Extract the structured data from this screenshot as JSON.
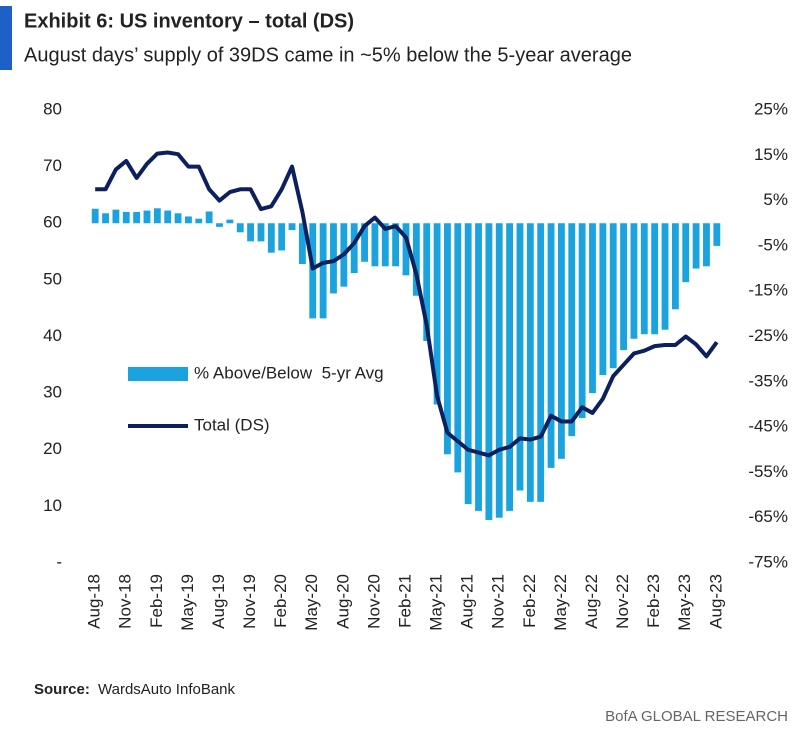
{
  "chart_data": {
    "type": "bar-line",
    "title": "Exhibit 6: US inventory – total (DS)",
    "subtitle": "August days’ supply of 39DS came in ~5% below the 5-year average",
    "source_label": "Source:",
    "source": "WardsAuto InfoBank",
    "credit": "BofA GLOBAL RESEARCH",
    "categories": [
      "Aug-18",
      null,
      null,
      "Nov-18",
      null,
      null,
      "Feb-19",
      null,
      null,
      "May-19",
      null,
      null,
      "Aug-19",
      null,
      null,
      "Nov-19",
      null,
      null,
      "Feb-20",
      null,
      null,
      "May-20",
      null,
      null,
      "Aug-20",
      null,
      null,
      "Nov-20",
      null,
      null,
      "Feb-21",
      null,
      null,
      "May-21",
      null,
      null,
      "Aug-21",
      null,
      null,
      "Nov-21",
      null,
      null,
      "Feb-22",
      null,
      null,
      "May-22",
      null,
      null,
      "Aug-22",
      null,
      null,
      "Nov-22",
      null,
      null,
      "Feb-23",
      null,
      null,
      "May-23",
      null,
      null,
      "Aug-23"
    ],
    "series": [
      {
        "name": "% Above/Below  5-yr Avg",
        "type": "bar",
        "axis": "y2",
        "color": "#1aa3df",
        "values": [
          3.2,
          2.2,
          3,
          2.5,
          2.5,
          2.8,
          3.3,
          2.8,
          2.2,
          1.5,
          1,
          2.6,
          -0.8,
          0.8,
          -2,
          -4,
          -4,
          -6.5,
          -6,
          -1.5,
          -9,
          -21,
          -21,
          -15.5,
          -14,
          -11,
          -8.5,
          -9.5,
          -9.5,
          -9.5,
          -11.5,
          -16,
          -26,
          -40,
          -51,
          -55,
          -62,
          -63.5,
          -65.5,
          -65,
          -63.5,
          -59,
          -61.5,
          -61.5,
          -54,
          -52,
          -47,
          -43,
          -37.5,
          -33.5,
          -32,
          -28,
          -25.5,
          -24.5,
          -24.5,
          -23.5,
          -19,
          -13,
          -10,
          -9.5,
          -5
        ]
      },
      {
        "name": "Total (DS)",
        "type": "line",
        "axis": "y",
        "color": "#0c1f5e",
        "values": [
          66,
          66,
          69.5,
          71,
          68,
          70.5,
          72.3,
          72.5,
          72.2,
          70,
          70,
          66,
          64,
          65.5,
          66,
          66,
          62.5,
          63,
          66,
          70,
          62,
          52,
          53,
          53.3,
          54.5,
          56.5,
          59.5,
          61,
          59,
          59.5,
          57.5,
          51,
          42,
          29.5,
          23,
          21.5,
          20,
          19.5,
          19,
          20,
          20.5,
          22,
          21.8,
          22.3,
          26,
          25,
          25,
          27.5,
          26.5,
          29,
          33,
          35,
          37,
          37.5,
          38.3,
          38.5,
          38.5,
          40,
          38.6,
          36.5,
          39
        ]
      }
    ],
    "ylim": [
      0,
      80
    ],
    "yticks": [
      {
        "value": 0,
        "label": "-"
      },
      10,
      20,
      30,
      40,
      50,
      60,
      70,
      80
    ],
    "y2lim": [
      -75,
      25
    ],
    "y2ticks": [
      {
        "value": -75,
        "label": "-75%"
      },
      {
        "value": -65,
        "label": "-65%"
      },
      {
        "value": -55,
        "label": "-55%"
      },
      {
        "value": -45,
        "label": "-45%"
      },
      {
        "value": -35,
        "label": "-35%"
      },
      {
        "value": -25,
        "label": "-25%"
      },
      {
        "value": -15,
        "label": "-15%"
      },
      {
        "value": -5,
        "label": "-5%"
      },
      {
        "value": 5,
        "label": "5%"
      },
      {
        "value": 15,
        "label": "15%"
      },
      {
        "value": 25,
        "label": "25%"
      }
    ],
    "grid": false
  }
}
